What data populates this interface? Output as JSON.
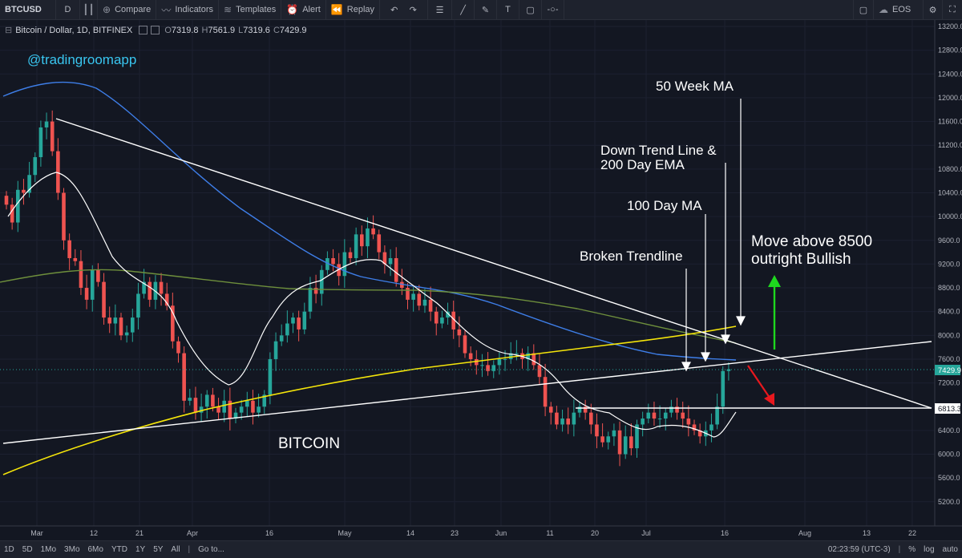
{
  "toolbar": {
    "symbol": "BTCUSD",
    "interval": "D",
    "compare": "Compare",
    "indicators": "Indicators",
    "templates": "Templates",
    "alert": "Alert",
    "replay": "Replay",
    "exchange_label": "EOS"
  },
  "legend": {
    "title": "Bitcoin / Dollar, 1D, BITFINEX",
    "open_key": "O",
    "open": "7319.8",
    "high_key": "H",
    "high": "7561.9",
    "low_key": "L",
    "low": "7319.6",
    "close_key": "C",
    "close": "7429.9"
  },
  "annotations": {
    "watermark": "@tradingroomapp",
    "ma50": "50 Week MA",
    "downtrend_1": "Down Trend Line &",
    "downtrend_2": "200 Day EMA",
    "ma100": "100 Day MA",
    "broken": "Broken Trendline",
    "move_1": "Move above 8500",
    "move_2": "outright Bullish",
    "bitcoin": "BITCOIN"
  },
  "price_axis": {
    "ticks": [
      "13200.0",
      "12800.0",
      "12400.0",
      "12000.0",
      "11600.0",
      "11200.0",
      "10800.0",
      "10400.0",
      "10000.0",
      "9600.0",
      "9200.0",
      "8800.0",
      "8400.0",
      "8000.0",
      "7600.0",
      "7200.0",
      "6800.0",
      "6400.0",
      "6000.0",
      "5600.0",
      "5200.0"
    ],
    "current_price": "7429.9",
    "level_price": "6813.3"
  },
  "time_axis": {
    "labels": [
      "Mar",
      "12",
      "21",
      "Apr",
      "16",
      "May",
      "14",
      "23",
      "Jun",
      "11",
      "20",
      "Jul",
      "16",
      "Aug",
      "13",
      "22"
    ]
  },
  "bottom": {
    "ranges": [
      "1D",
      "5D",
      "1Mo",
      "3Mo",
      "6Mo",
      "YTD",
      "1Y",
      "5Y",
      "All"
    ],
    "goto": "Go to...",
    "time": "02:23:59 (UTC-3)",
    "pct": "%",
    "log": "log",
    "auto": "auto"
  },
  "colors": {
    "up": "#26a69a",
    "down": "#ef5350",
    "ema_yellow": "#f5e50a",
    "ma_blue": "#3e7ee8",
    "ma_green": "#6e8f3c",
    "white_line": "#ffffff",
    "watermark": "#39c6f0"
  },
  "chart_data": {
    "type": "candlestick",
    "symbol": "Bitcoin / Dollar, 1D, BITFINEX",
    "ylim": [
      5000,
      13300
    ],
    "x_labels": [
      "Mar",
      "12",
      "21",
      "Apr",
      "16",
      "May",
      "14",
      "23",
      "Jun",
      "11",
      "20",
      "Jul",
      "16",
      "Aug",
      "13",
      "22"
    ],
    "closes": [
      10200,
      9900,
      10450,
      10400,
      10700,
      11000,
      11500,
      11600,
      11100,
      10400,
      9600,
      9300,
      9250,
      8800,
      8600,
      9100,
      8900,
      8300,
      8200,
      8300,
      8000,
      8050,
      8300,
      8700,
      8900,
      8600,
      8900,
      8700,
      8500,
      7900,
      7700,
      6900,
      6950,
      6700,
      6800,
      7000,
      6800,
      6700,
      6900,
      6600,
      6700,
      6800,
      6900,
      6700,
      6800,
      7000,
      7600,
      7900,
      8000,
      8200,
      8300,
      8100,
      8400,
      8800,
      8700,
      9100,
      9300,
      9200,
      9000,
      9400,
      9300,
      9700,
      9500,
      9800,
      9700,
      9400,
      9200,
      9300,
      8900,
      8800,
      8600,
      8700,
      8500,
      8600,
      8400,
      8200,
      8300,
      8400,
      8100,
      8000,
      7700,
      7600,
      7500,
      7500,
      7400,
      7500,
      7600,
      7600,
      7700,
      7700,
      7600,
      7700,
      7500,
      7300,
      6800,
      6700,
      6500,
      6600,
      6500,
      6700,
      6800,
      6700,
      6500,
      6300,
      6200,
      6300,
      6400,
      6000,
      6300,
      6100,
      6500,
      6600,
      6700,
      6600,
      6600,
      6700,
      6800,
      6700,
      6600,
      6500,
      6400,
      6300,
      6400,
      6500,
      6800,
      7400,
      7430
    ],
    "series": [
      {
        "name": "50 Week MA",
        "color": "#f5e50a"
      },
      {
        "name": "100 Day MA",
        "color": "#3e7ee8"
      },
      {
        "name": "200 Day EMA",
        "color": "#6e8f3c"
      }
    ],
    "levels": [
      6813.3,
      7429.9
    ]
  }
}
